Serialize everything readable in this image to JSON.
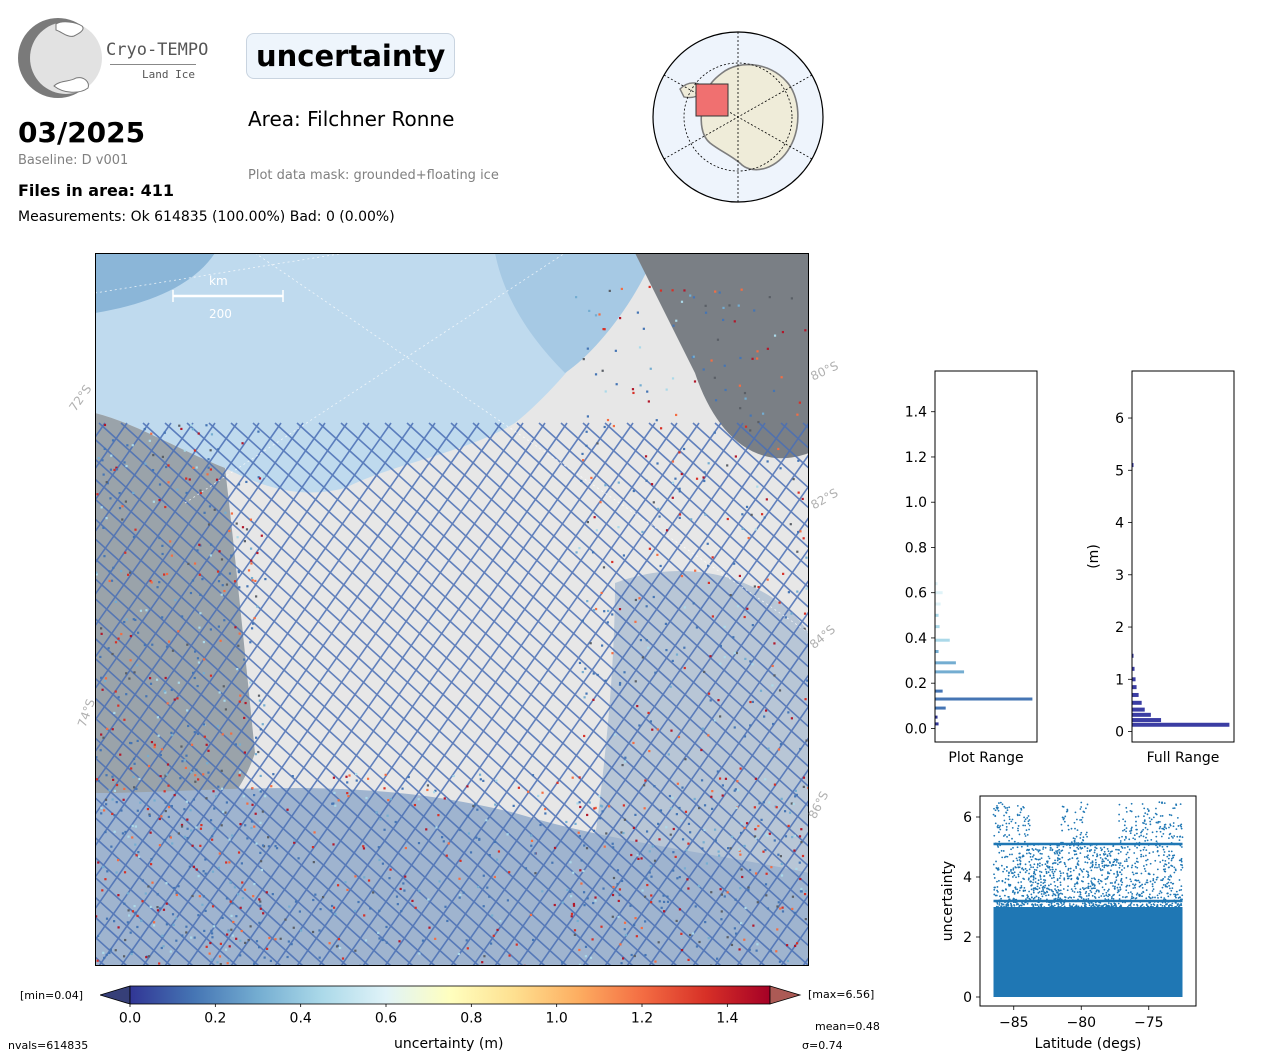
{
  "header": {
    "logo_name": "Cryo-TEMPO",
    "logo_sub": "Land Ice",
    "date": "03/2025",
    "baseline": "Baseline: D v001",
    "files": "Files in area: 411",
    "measurements": "Measurements: Ok 614835 (100.00%) Bad: 0 (0.00%)",
    "param_title": "uncertainty",
    "area": "Area: Filchner Ronne",
    "mask": "Plot data mask: grounded+floating ice"
  },
  "map": {
    "scale_unit": "km",
    "scale_value": "200",
    "lat_labels_left": [
      "72°S",
      "74°S"
    ],
    "lat_labels_right": [
      "80°S",
      "82°S",
      "84°S",
      "86°S"
    ]
  },
  "colorbar": {
    "min_label": "[min=0.04]",
    "max_label": "[max=6.56]",
    "ticks": [
      "0.0",
      "0.2",
      "0.4",
      "0.6",
      "0.8",
      "1.0",
      "1.2",
      "1.4"
    ],
    "label": "uncertainty (m)",
    "range": [
      0.0,
      1.5
    ],
    "colors": [
      "#313695",
      "#4575b4",
      "#74add1",
      "#abd9e9",
      "#e0f3f8",
      "#ffffbf",
      "#fee090",
      "#fdae61",
      "#f46d43",
      "#d73027",
      "#a50026"
    ]
  },
  "stats": {
    "nvals": "nvals=614835",
    "mean": "mean=0.48",
    "sigma": "σ=0.74"
  },
  "hist_plot_range": {
    "xlabel": "Plot Range",
    "yticks": [
      "0.0",
      "0.2",
      "0.4",
      "0.6",
      "0.8",
      "1.0",
      "1.2",
      "1.4"
    ],
    "ylim": [
      -0.06,
      1.58
    ],
    "bins": [
      {
        "y": 0.02,
        "rel": 0.03
      },
      {
        "y": 0.05,
        "rel": 0.02
      },
      {
        "y": 0.09,
        "rel": 0.1
      },
      {
        "y": 0.13,
        "rel": 0.95
      },
      {
        "y": 0.165,
        "rel": 0.07
      },
      {
        "y": 0.25,
        "rel": 0.28
      },
      {
        "y": 0.29,
        "rel": 0.2
      },
      {
        "y": 0.34,
        "rel": 0.03
      },
      {
        "y": 0.39,
        "rel": 0.14
      },
      {
        "y": 0.45,
        "rel": 0.04
      },
      {
        "y": 0.5,
        "rel": 0.03
      },
      {
        "y": 0.55,
        "rel": 0.05
      },
      {
        "y": 0.6,
        "rel": 0.07
      },
      {
        "y": 0.64,
        "rel": 0.02
      }
    ]
  },
  "hist_full_range": {
    "xlabel": "Full Range",
    "ylabel": "(m)",
    "yticks": [
      "0",
      "1",
      "2",
      "3",
      "4",
      "5",
      "6"
    ],
    "ylim": [
      -0.2,
      6.9
    ],
    "bins": [
      {
        "y": 0.13,
        "rel": 0.95
      },
      {
        "y": 0.22,
        "rel": 0.28
      },
      {
        "y": 0.32,
        "rel": 0.18
      },
      {
        "y": 0.42,
        "rel": 0.12
      },
      {
        "y": 0.55,
        "rel": 0.09
      },
      {
        "y": 0.7,
        "rel": 0.06
      },
      {
        "y": 0.85,
        "rel": 0.04
      },
      {
        "y": 1.0,
        "rel": 0.03
      },
      {
        "y": 1.2,
        "rel": 0.02
      },
      {
        "y": 1.45,
        "rel": 0.01
      },
      {
        "y": 5.1,
        "rel": 0.01
      }
    ]
  },
  "scatter": {
    "xlabel": "Latitude (degs)",
    "ylabel": "uncertainty",
    "xticks": [
      "−85",
      "−80",
      "−75"
    ],
    "yticks": [
      "0",
      "2",
      "4",
      "6"
    ],
    "xlim": [
      -87.5,
      -71.5
    ],
    "ylim": [
      -0.3,
      6.7
    ],
    "lat_range": [
      -86.5,
      -72.5
    ],
    "bands": [
      3.2,
      5.1
    ]
  }
}
